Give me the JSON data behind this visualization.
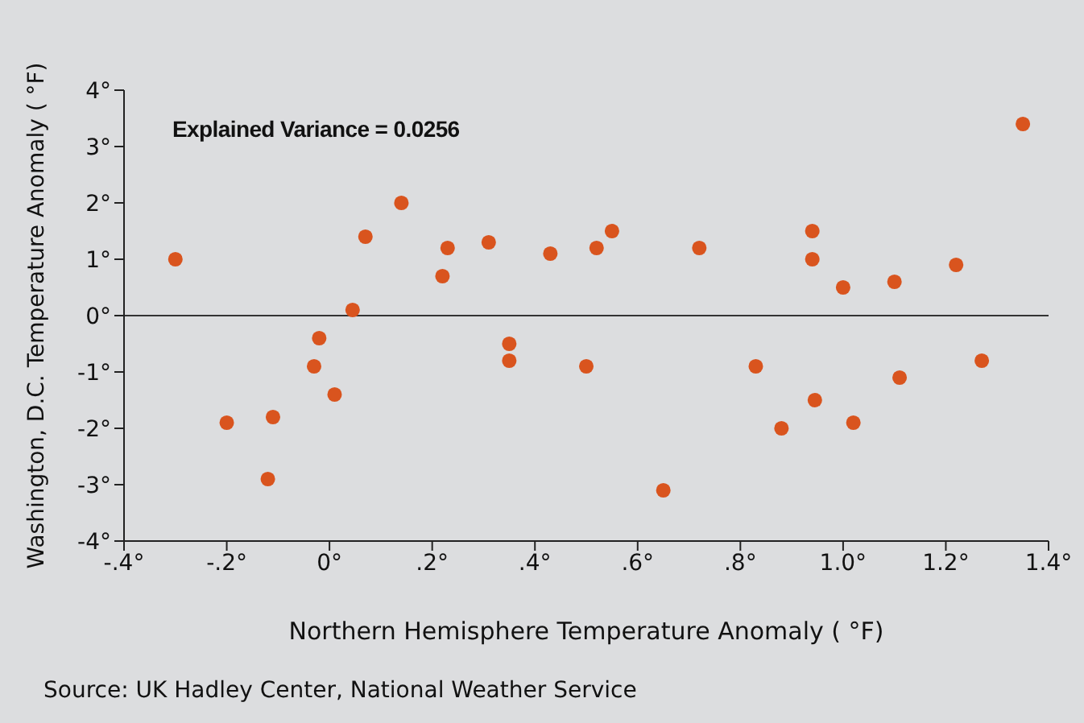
{
  "chart_data": {
    "type": "scatter",
    "xlabel": "Northern Hemisphere Temperature Anomaly ( °F)",
    "ylabel": "Washington, D.C. Temperature Anomaly ( °F)",
    "annotations": [
      "Explained Variance = 0.0256",
      "Source: UK Hadley Center, National Weather Service"
    ],
    "x": [
      -0.3,
      -0.2,
      -0.12,
      -0.11,
      -0.03,
      -0.02,
      0.01,
      0.045,
      0.07,
      0.14,
      0.22,
      0.23,
      0.31,
      0.35,
      0.35,
      0.43,
      0.5,
      0.52,
      0.55,
      0.65,
      0.72,
      0.83,
      0.88,
      0.94,
      0.94,
      0.945,
      1.0,
      1.02,
      1.1,
      1.11,
      1.22,
      1.27,
      1.35
    ],
    "series": [
      {
        "color": "#d9541e",
        "values": [
          1.0,
          -1.9,
          -2.9,
          -1.8,
          -0.9,
          -0.4,
          -1.4,
          0.1,
          1.4,
          2.0,
          0.7,
          1.2,
          1.3,
          -0.5,
          -0.8,
          1.1,
          -0.9,
          1.2,
          1.5,
          -3.1,
          1.2,
          -0.9,
          -2.0,
          1.5,
          1.0,
          -1.5,
          0.5,
          -1.9,
          0.6,
          -1.1,
          0.9,
          -0.8,
          3.4
        ]
      }
    ],
    "xlim": [
      -0.4,
      1.4
    ],
    "xticks": [
      {
        "value": -0.4,
        "label": "-.4°"
      },
      {
        "value": -0.2,
        "label": "-.2°"
      },
      {
        "value": 0,
        "label": "0°"
      },
      {
        "value": 0.2,
        "label": ".2°"
      },
      {
        "value": 0.4,
        "label": ".4°"
      },
      {
        "value": 0.6,
        "label": ".6°"
      },
      {
        "value": 0.8,
        "label": ".8°"
      },
      {
        "value": 1.0,
        "label": "1.0°"
      },
      {
        "value": 1.2,
        "label": "1.2°"
      },
      {
        "value": 1.4,
        "label": "1.4°"
      }
    ],
    "ylim": [
      -4,
      4
    ],
    "yticks": [
      {
        "value": -4,
        "label": "-4°"
      },
      {
        "value": -3,
        "label": "-3°"
      },
      {
        "value": -2,
        "label": "-2°"
      },
      {
        "value": -1,
        "label": "-1°"
      },
      {
        "value": 0,
        "label": "0°"
      },
      {
        "value": 1,
        "label": "1°"
      },
      {
        "value": 2,
        "label": "2°"
      },
      {
        "value": 3,
        "label": "3°"
      },
      {
        "value": 4,
        "label": "4°"
      }
    ],
    "ref_lines": [
      {
        "axis": "y",
        "value": 0,
        "color": "#333333"
      }
    ],
    "grid": false,
    "legend": false,
    "marker": "circle"
  }
}
